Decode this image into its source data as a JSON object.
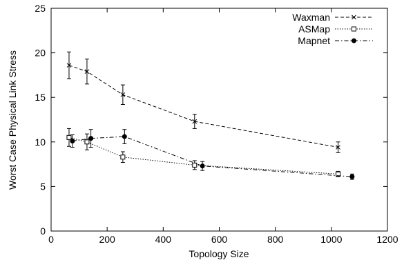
{
  "chart_data": {
    "type": "line",
    "xlabel": "Topology Size",
    "ylabel": "Worst Case Physical Link Stress",
    "xlim": [
      0,
      1200
    ],
    "ylim": [
      0,
      25
    ],
    "x_ticks": [
      "0",
      "200",
      "400",
      "600",
      "800",
      "1000",
      "1200"
    ],
    "y_ticks": [
      "0",
      "5",
      "10",
      "15",
      "20",
      "25"
    ],
    "grid": false,
    "legend_position": "top-right",
    "series": [
      {
        "name": "Waxman",
        "marker": "x",
        "dash": "dashed",
        "x": [
          64,
          128,
          256,
          512,
          1024
        ],
        "y": [
          18.6,
          17.9,
          15.3,
          12.3,
          9.4
        ],
        "err": [
          1.5,
          1.4,
          1.1,
          0.8,
          0.6
        ]
      },
      {
        "name": "ASMap",
        "marker": "open-square",
        "dash": "dotted",
        "x": [
          64,
          128,
          256,
          512,
          1024
        ],
        "y": [
          10.5,
          10.0,
          8.3,
          7.4,
          6.4
        ],
        "err": [
          1.0,
          0.9,
          0.6,
          0.5,
          0.3
        ]
      },
      {
        "name": "Mapnet",
        "marker": "filled-circle",
        "dash": "dash-dot",
        "x": [
          76,
          142,
          262,
          540,
          1074
        ],
        "y": [
          10.1,
          10.4,
          10.6,
          7.3,
          6.1
        ],
        "err": [
          0.7,
          1.0,
          0.8,
          0.5,
          0.3
        ]
      }
    ]
  }
}
